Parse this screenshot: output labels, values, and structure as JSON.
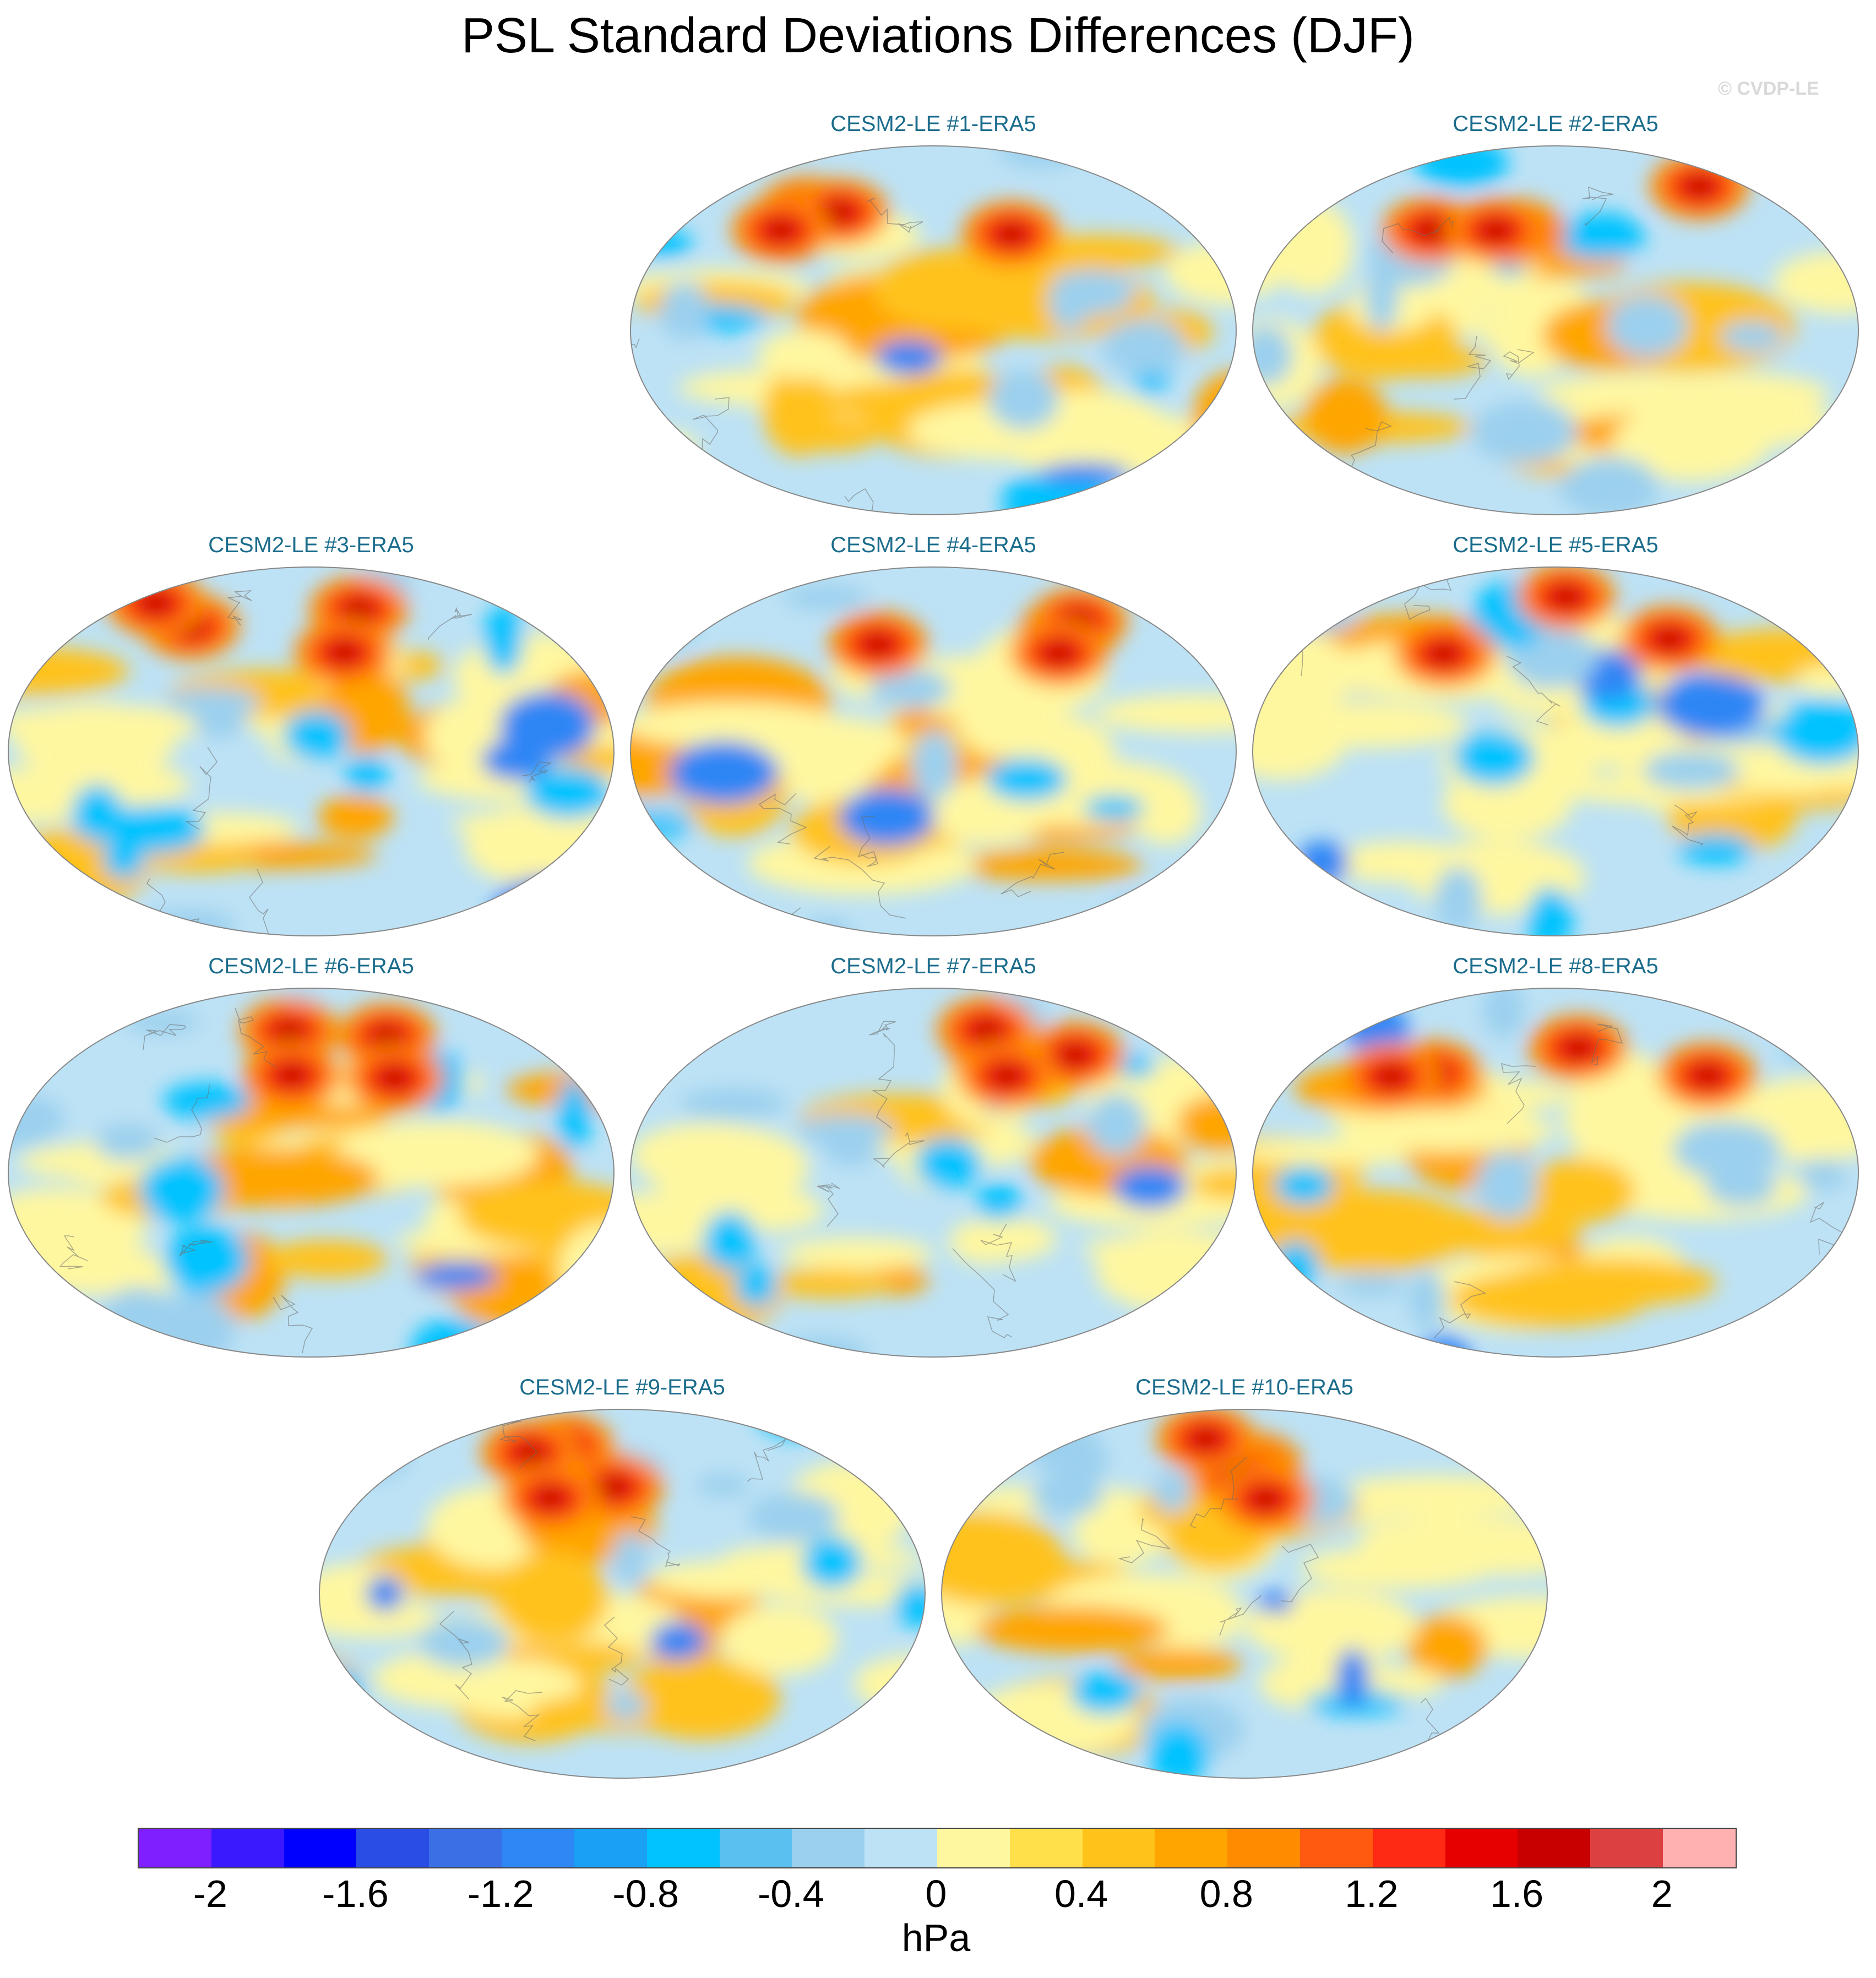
{
  "figure": {
    "title": "PSL Standard Deviations Differences (DJF)",
    "watermark": "© CVDP-LE"
  },
  "panels": [
    {
      "title": "CESM2-LE #1-ERA5"
    },
    {
      "title": "CESM2-LE #2-ERA5"
    },
    {
      "title": "CESM2-LE #3-ERA5"
    },
    {
      "title": "CESM2-LE #4-ERA5"
    },
    {
      "title": "CESM2-LE #5-ERA5"
    },
    {
      "title": "CESM2-LE #6-ERA5"
    },
    {
      "title": "CESM2-LE #7-ERA5"
    },
    {
      "title": "CESM2-LE #8-ERA5"
    },
    {
      "title": "CESM2-LE #9-ERA5"
    },
    {
      "title": "CESM2-LE #10-ERA5"
    }
  ],
  "colorbar": {
    "units": "hPa",
    "colors": [
      "#7f1fff",
      "#3b19ff",
      "#0000ff",
      "#2a4de6",
      "#3a6fe6",
      "#2f86f5",
      "#1aa0f5",
      "#00c3ff",
      "#5ac0f0",
      "#9bd0ee",
      "#bde2f5",
      "#fff7a0",
      "#ffe04a",
      "#ffc21a",
      "#ffa500",
      "#ff8c00",
      "#ff5a0f",
      "#ff2a14",
      "#e60000",
      "#c80000",
      "#dc4040",
      "#ffb0b0"
    ],
    "ticks": [
      "-2",
      "-1.6",
      "-1.2",
      "-0.8",
      "-0.4",
      "0",
      "0.4",
      "0.8",
      "1.2",
      "1.6",
      "2"
    ]
  }
}
